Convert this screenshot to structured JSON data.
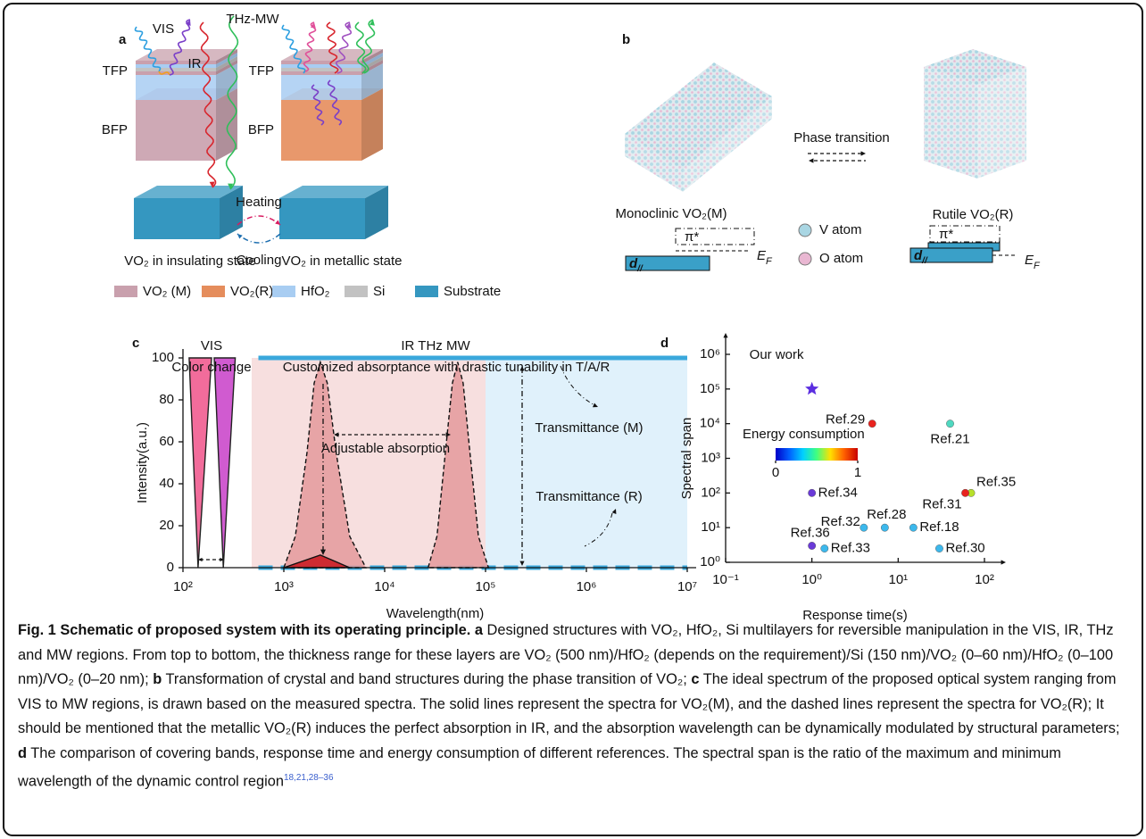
{
  "figure": {
    "panel_a": {
      "label": "a",
      "rays": [
        "VIS",
        "IR",
        "THz-MW"
      ],
      "left_layers": [
        "TFP",
        "BFP"
      ],
      "right_layers": [
        "TFP",
        "BFP"
      ],
      "heating": "Heating",
      "cooling": "Cooling",
      "left_caption": "VO₂ in insulating state",
      "right_caption": "VO₂ in metallic state",
      "legend": [
        {
          "name": "VO₂ (M)",
          "color": "#c9a0ad"
        },
        {
          "name": "VO₂(R)",
          "color": "#e58d5c"
        },
        {
          "name": "HfO₂",
          "color": "#a8cdf2"
        },
        {
          "name": "Si",
          "color": "#c2c2c2"
        },
        {
          "name": "Substrate",
          "color": "#3597c0"
        }
      ]
    },
    "panel_b": {
      "label": "b",
      "transition": "Phase transition",
      "left": "Monoclinic VO₂(M)",
      "right": "Rutile VO₂(R)",
      "pi": "π*",
      "ef": "E",
      "ef_sub": "F",
      "d": "d",
      "d_sub": "//",
      "atoms": [
        {
          "name": "V atom",
          "color": "#a9d6e3"
        },
        {
          "name": "O atom",
          "color": "#e9b7d2"
        }
      ]
    }
  },
  "chart_data": [
    {
      "type": "line",
      "label": "c",
      "xlabel": "Wavelength(nm)",
      "ylabel": "Intensity(a.u.)",
      "log_x": true,
      "xlim": [
        100,
        10000000
      ],
      "xticks": [
        {
          "value": 100,
          "label": "10²"
        },
        {
          "value": 1000,
          "label": "10³"
        },
        {
          "value": 10000,
          "label": "10⁴"
        },
        {
          "value": 100000,
          "label": "10⁵"
        },
        {
          "value": 1000000,
          "label": "10⁶"
        },
        {
          "value": 10000000,
          "label": "10⁷"
        }
      ],
      "ylim": [
        0,
        100
      ],
      "yticks": [
        0,
        20,
        40,
        60,
        80,
        100
      ],
      "annotations": {
        "vis": "VIS",
        "vis_sub": "Color change",
        "bands": "IR THz MW",
        "bands_sub": "Customized absorptance with drastic tunability in T/A/R",
        "adjustable": "Adjustable absorption",
        "trans_m": "Transmittance (M)",
        "trans_r": "Transmittance (R)"
      },
      "regions": [
        {
          "x": [
            480,
            100000
          ],
          "color": "#f7dfdf"
        },
        {
          "x": [
            100000,
            10000000
          ],
          "color": "#e0f1fb"
        }
      ],
      "series": [
        {
          "color": "#222222",
          "fill": "#f0528a",
          "dash": false,
          "x": [
            115,
            141,
            192
          ],
          "values": [
            100,
            0,
            100
          ]
        },
        {
          "color": "#222222",
          "fill": "#c83ec8",
          "dash": false,
          "x": [
            204,
            251,
            330
          ],
          "values": [
            100,
            0,
            100
          ]
        },
        {
          "color": "#3aa8dc",
          "dash": false,
          "x": [
            560,
            10000000
          ],
          "values": [
            100,
            100
          ]
        },
        {
          "color": "#3aa8dc",
          "dash": true,
          "x": [
            560,
            10000000
          ],
          "values": [
            0,
            0
          ]
        },
        {
          "color": "#111111",
          "fill": "#e49a9c",
          "dash": true,
          "x": [
            1000,
            1300,
            1700,
            2000,
            2300,
            2700,
            3300,
            4500,
            6500
          ],
          "values": [
            0,
            15,
            55,
            88,
            98,
            88,
            55,
            15,
            0
          ]
        },
        {
          "color": "#111111",
          "fill": "#e49a9c",
          "dash": true,
          "x": [
            27000,
            33000,
            40000,
            47000,
            53000,
            60000,
            70000,
            85000,
            107000
          ],
          "values": [
            0,
            15,
            55,
            88,
            98,
            88,
            55,
            15,
            0
          ]
        },
        {
          "color": "#111111",
          "fill": "#c8161d",
          "dash": false,
          "x": [
            1000,
            2300,
            4500
          ],
          "values": [
            0,
            6,
            0
          ]
        }
      ]
    },
    {
      "type": "scatter",
      "label": "d",
      "xlabel": "Response time(s)",
      "ylabel": "Spectral span",
      "log_x": true,
      "log_y": true,
      "xlim": [
        0.1,
        100
      ],
      "xticks": [
        {
          "value": 0.1,
          "label": "10⁻¹"
        },
        {
          "value": 1,
          "label": "10⁰"
        },
        {
          "value": 10,
          "label": "10¹"
        },
        {
          "value": 100,
          "label": "10²"
        }
      ],
      "ylim": [
        1,
        1000000
      ],
      "yticks": [
        {
          "value": 1,
          "label": "10⁰"
        },
        {
          "value": 10,
          "label": "10¹"
        },
        {
          "value": 100,
          "label": "10²"
        },
        {
          "value": 1000,
          "label": "10³"
        },
        {
          "value": 10000,
          "label": "10⁴"
        },
        {
          "value": 100000,
          "label": "10⁵"
        },
        {
          "value": 1000000,
          "label": "10⁶"
        }
      ],
      "point_labels": [
        "Our work",
        "Ref.29",
        "Ref.21",
        "Ref.34",
        "Ref.35",
        "Ref.31",
        "Ref.32",
        "Ref.28",
        "Ref.18",
        "Ref.36",
        "Ref.33",
        "Ref.30"
      ],
      "x": [
        1,
        5,
        40,
        1,
        70,
        60,
        4,
        7,
        15,
        1,
        1.4,
        30
      ],
      "values": [
        100000,
        10000,
        10000,
        100,
        100,
        100,
        10,
        10,
        10,
        3,
        2.5,
        2.5
      ],
      "colors": [
        "#5b2ee0",
        "#e8231e",
        "#4fd8c0",
        "#6a3ad8",
        "#b8e02a",
        "#e8231e",
        "#3cb8ec",
        "#3cb8ec",
        "#3cb8ec",
        "#6a3ad8",
        "#3cb8ec",
        "#3cb8ec"
      ],
      "markers": [
        "star",
        "circle",
        "circle",
        "circle",
        "circle",
        "circle",
        "circle",
        "circle",
        "circle",
        "circle",
        "circle",
        "circle"
      ],
      "colorbar": {
        "title": "Energy consumption",
        "lim": [
          0,
          1
        ],
        "ticks": [
          0,
          1
        ]
      }
    }
  ],
  "caption": {
    "runs": [
      {
        "text": "Fig. 1 Schematic of proposed system with its operating principle.",
        "style": "bold"
      },
      {
        "text": " a",
        "style": "bold"
      },
      {
        "text": " Designed structures with VO₂, HfO₂, Si multilayers for reversible manipulation in the VIS, IR, THz and MW regions. From top to bottom, the thickness range for these layers are VO₂ (500 nm)/HfO₂ (depends on the requirement)/Si (150 nm)/VO₂ (0–60 nm)/HfO₂ (0–100 nm)/VO₂ (0–20 nm); ",
        "style": "normal"
      },
      {
        "text": "b",
        "style": "bold"
      },
      {
        "text": " Transformation of crystal and band structures during the phase transition of VO₂; ",
        "style": "normal"
      },
      {
        "text": "c",
        "style": "bold"
      },
      {
        "text": " The ideal spectrum of the proposed optical system ranging from VIS to MW regions, is drawn based on the measured spectra. The solid lines represent the spectra for VO₂(M), and the dashed lines represent the spectra for VO₂(R); It should be mentioned that the metallic VO₂(R) induces the perfect absorption in IR, and the absorption wavelength can be dynamically modulated by structural parameters; ",
        "style": "normal"
      },
      {
        "text": "d",
        "style": "bold"
      },
      {
        "text": " The comparison of covering bands, response time and energy consumption of different references. The spectral span is the ratio of the maximum and minimum wavelength of the dynamic control region",
        "style": "normal"
      },
      {
        "text": "18,21,28–36",
        "style": "sup"
      }
    ]
  }
}
